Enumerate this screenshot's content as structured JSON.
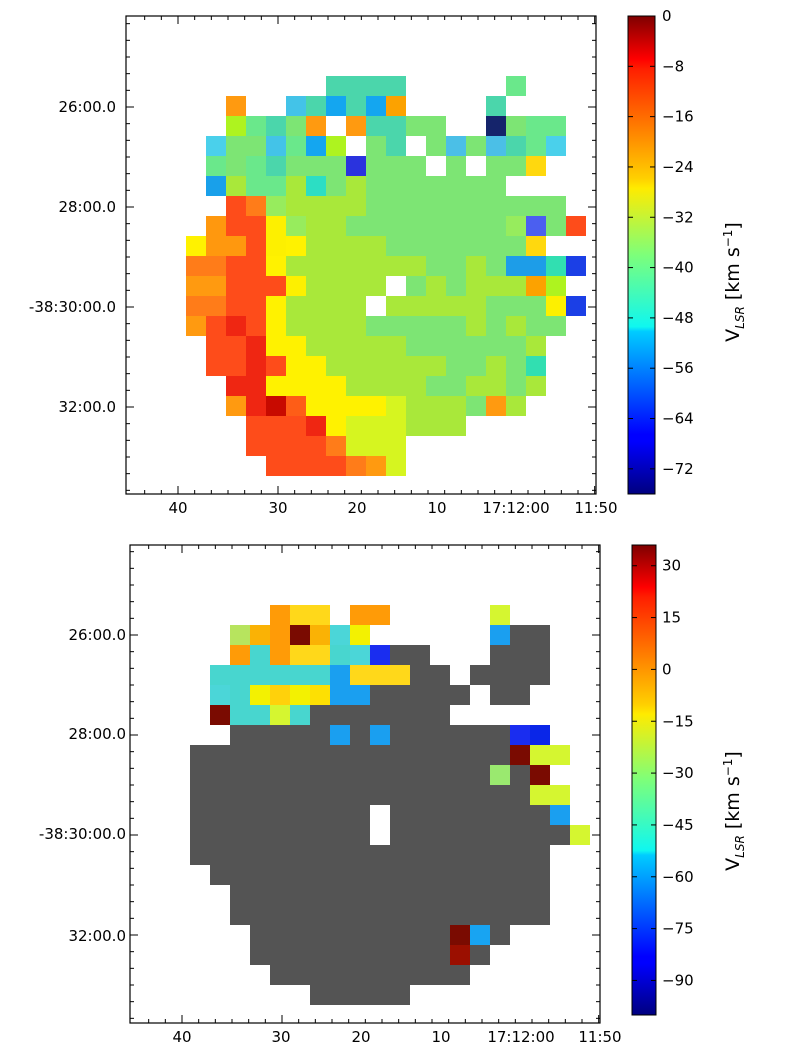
{
  "chart_data": [
    {
      "type": "heatmap",
      "x_tick_labels": [
        "40",
        "30",
        "20",
        "10",
        "17:12:00",
        "11:50"
      ],
      "y_tick_labels": [
        "26:00.0",
        "28:00.0",
        "-38:30:00.0",
        "32:00.0"
      ],
      "colorbar": {
        "label": "V",
        "label_subscript": "LSR",
        "label_unit": " [km s",
        "label_exponent": "−1",
        "label_close": "]",
        "range": [
          -76,
          0
        ],
        "ticks": [
          0,
          -8,
          -16,
          -24,
          -32,
          -40,
          -48,
          -56,
          -64,
          -72
        ],
        "tick_labels": [
          "0",
          "−8",
          "−16",
          "−24",
          "−32",
          "−40",
          "−48",
          "−56",
          "−64",
          "−72"
        ]
      },
      "grid": false,
      "rows": [
        "......................",
        "......................",
        ".........CCCC.....c...",
        "....o..UCDCDu....C..",
        "....ycCGo.oCCGG..VGcc.",
        "...HGGUcDy.GC.GBGBCcH.",
        "...cGcCGGGiGGG.G.GGZ..",
        "...dFccFmGFGGGGGGG....",
        "....rnhFFFFGGGGGGGGGG.",
        "...qrrehFFGGGGGGGGhMGrS",
        "..vqqrevFFFFGGGGGGGZ..",
        "..nnrrvFFFFFFFGGFGEEJS",
        "..oorrreFFFF.GFGFFFuy.",
        "..nnrrvFFFF.FFFFFGGGeS",
        "..orsrvFFFFGGGGGFGFGG.",
        "...rrsvvFFFFFGGGGGGF..",
        "...rrsrvvFFFFFFGGFGJ..",
        "....ssvvvvFFFFGGFFGF..",
        "....osAxvvvvtFFFGoF...",
        ".....rrrsvtttFFF......",
        ".....rrrrnttt.........",
        "......rrrrnot.........",
        "........ooon..........",
        "......................"
      ],
      "color_key": {
        ".": "none",
        "A": "#c80a00",
        "B": "#4bbfe7",
        "C": "#4bd6ab",
        "D": "#14a6f0",
        "E": "#1d9de8",
        "F": "#a9e83a",
        "G": "#7de574",
        "H": "#4ad0eb",
        "J": "#31dfb1",
        "M": "#4b5ff0",
        "S": "#1b3fe6",
        "U": "#43c3e8",
        "V": "#15246b",
        "Z": "#ffd80e",
        "c": "#6ae88b",
        "d": "#19a0ea",
        "e": "#fdf000",
        "h": "#97ec5d",
        "i": "#2a33de",
        "m": "#2cdec4",
        "n": "#ff7c19",
        "o": "#ff9a10",
        "q": "#ff980e",
        "r": "#fe4c1a",
        "s": "#ef2612",
        "t": "#d6f520",
        "u": "#fca200",
        "v": "#fff200",
        "x": "#fe5d17",
        "y": "#aef31f"
      }
    },
    {
      "type": "heatmap",
      "x_tick_labels": [
        "40",
        "30",
        "20",
        "10",
        "17:12:00",
        "11:50"
      ],
      "y_tick_labels": [
        "26:00.0",
        "28:00.0",
        "-38:30:00.0",
        "32:00.0"
      ],
      "colorbar": {
        "label": "V",
        "label_subscript": "LSR",
        "label_unit": " [km s",
        "label_exponent": "−1",
        "label_close": "]",
        "range": [
          -100,
          36
        ],
        "ticks": [
          30,
          15,
          0,
          -15,
          -30,
          -45,
          -60,
          -75,
          -90
        ],
        "tick_labels": [
          "30",
          "15",
          "0",
          "−15",
          "−30",
          "−45",
          "−60",
          "−75",
          "−90"
        ]
      },
      "grid": false,
      "rows": [
        "......................",
        "......................",
        "......oee.oo.....y....",
        "....ztoktBm......Dgg..",
        "....oHoeeHBGgg...ggg..",
        "...HHHHHHDeeegg.gggg..",
        "...BHmUmNDDggggg.gg...",
        "...kHHyHggggggg.......",
        "....gggggDgDggggggGS..",
        "..ggggggggggggggggkyy.",
        "..gggggggggggggggCgk..",
        "..gggggggggggggggggyy.",
        "..ggggggggg.ggggggggD.",
        "..ggggggggg.gggggggggy",
        "..gggggggggggggggggg..",
        "...ggggggggggggggggg..",
        "....gggggggggggggggg..",
        "....gggggggggggggggg..",
        ".....ggggggggggkEg....",
        ".....ggggggggggdg.....",
        "......gggggggggg......",
        "........ggggg.........",
        "......................",
        "......................"
      ],
      "color_key": {
        ".": "none",
        "B": "#4bd6d8",
        "C": "#9ae96f",
        "D": "#1a9ff0",
        "E": "#18a4f2",
        "G": "#1a2df0",
        "H": "#48d6cf",
        "N": "#fde003",
        "S": "#0a26e8",
        "U": "#ffd10b",
        "d": "#9b0f00",
        "e": "#ffd81a",
        "g": "#545454",
        "k": "#7a0b01",
        "m": "#f3f101",
        "o": "#ff9b07",
        "t": "#fab205",
        "y": "#d5f630",
        "z": "#b7e45e"
      }
    }
  ]
}
